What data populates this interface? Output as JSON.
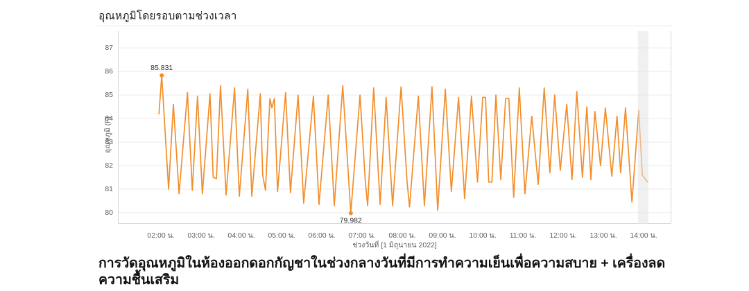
{
  "page": {
    "title": "อุณหภูมิโดยรอบตามช่วงเวลา",
    "caption": "การวัดอุณหภูมิในห้องออกดอกกัญชาในช่วงกลางวันที่มีการทำความเย็นเพื่อความสบาย + เครื่องลดความชื้นเสริม"
  },
  "colors": {
    "line": "#f28e2b",
    "grid": "#ebebeb",
    "axis_border": "#d8d8d8",
    "tick_text": "#5f5f5f",
    "annotation_text": "#2e2e2e",
    "highlight_band": "rgba(228,228,228,0.55)"
  },
  "chart_data": {
    "type": "line",
    "title": "อุณหภูมิโดยรอบตามช่วงเวลา",
    "xlabel": "ช่วงวันที่ [1 มิถุนายน 2022]",
    "ylabel": "อุณหภูมิ (F)",
    "legend": "none",
    "grid": "horizontal-only",
    "x_unit": "hour_of_day",
    "x_domain": [
      0.93,
      14.69
    ],
    "y_domain": [
      79.53,
      87.71
    ],
    "y_ticks": [
      80,
      81,
      82,
      83,
      84,
      85,
      86,
      87
    ],
    "x_ticks": [
      {
        "value": 2,
        "label": "02:00 น."
      },
      {
        "value": 3,
        "label": "03:00 น."
      },
      {
        "value": 4,
        "label": "04:00 น."
      },
      {
        "value": 5,
        "label": "05:00 น."
      },
      {
        "value": 6,
        "label": "06:00 น."
      },
      {
        "value": 7,
        "label": "07:00 น."
      },
      {
        "value": 8,
        "label": "08:00 น."
      },
      {
        "value": 9,
        "label": "09:00 น."
      },
      {
        "value": 10,
        "label": "10:00 น."
      },
      {
        "value": 11,
        "label": "11:00 น."
      },
      {
        "value": 12,
        "label": "12:00 น."
      },
      {
        "value": 13,
        "label": "13:00 น."
      },
      {
        "value": 14,
        "label": "14:00 น."
      }
    ],
    "series": [
      {
        "name": "อุณหภูมิ (F)",
        "color": "#f28e2b",
        "points": [
          [
            1.95,
            84.2
          ],
          [
            2.02,
            85.831
          ],
          [
            2.19,
            81.0
          ],
          [
            2.31,
            84.6
          ],
          [
            2.45,
            80.8
          ],
          [
            2.66,
            85.1
          ],
          [
            2.78,
            80.95
          ],
          [
            2.91,
            84.95
          ],
          [
            3.03,
            80.8
          ],
          [
            3.22,
            85.05
          ],
          [
            3.3,
            81.5
          ],
          [
            3.38,
            81.45
          ],
          [
            3.48,
            85.4
          ],
          [
            3.62,
            80.75
          ],
          [
            3.83,
            85.3
          ],
          [
            3.95,
            80.7
          ],
          [
            4.16,
            85.25
          ],
          [
            4.26,
            80.7
          ],
          [
            4.47,
            85.05
          ],
          [
            4.53,
            81.6
          ],
          [
            4.6,
            80.95
          ],
          [
            4.71,
            84.85
          ],
          [
            4.76,
            84.45
          ],
          [
            4.82,
            84.85
          ],
          [
            4.9,
            80.9
          ],
          [
            5.1,
            85.1
          ],
          [
            5.22,
            80.85
          ],
          [
            5.41,
            85.0
          ],
          [
            5.55,
            80.4
          ],
          [
            5.79,
            84.95
          ],
          [
            5.93,
            80.35
          ],
          [
            6.16,
            85.0
          ],
          [
            6.31,
            80.3
          ],
          [
            6.52,
            85.4
          ],
          [
            6.72,
            79.982
          ],
          [
            6.95,
            85.0
          ],
          [
            7.08,
            81.35
          ],
          [
            7.14,
            80.3
          ],
          [
            7.29,
            85.3
          ],
          [
            7.45,
            80.35
          ],
          [
            7.6,
            84.9
          ],
          [
            7.76,
            80.3
          ],
          [
            7.97,
            85.35
          ],
          [
            8.12,
            81.3
          ],
          [
            8.18,
            80.25
          ],
          [
            8.4,
            84.95
          ],
          [
            8.55,
            80.3
          ],
          [
            8.74,
            85.35
          ],
          [
            8.88,
            80.1
          ],
          [
            9.07,
            85.25
          ],
          [
            9.22,
            80.9
          ],
          [
            9.4,
            84.9
          ],
          [
            9.55,
            80.6
          ],
          [
            9.72,
            84.95
          ],
          [
            9.87,
            81.3
          ],
          [
            10.0,
            84.9
          ],
          [
            10.07,
            84.9
          ],
          [
            10.15,
            81.3
          ],
          [
            10.23,
            81.3
          ],
          [
            10.33,
            85.0
          ],
          [
            10.45,
            81.4
          ],
          [
            10.57,
            84.85
          ],
          [
            10.65,
            84.85
          ],
          [
            10.77,
            80.65
          ],
          [
            10.91,
            85.3
          ],
          [
            11.05,
            80.8
          ],
          [
            11.22,
            84.1
          ],
          [
            11.38,
            81.2
          ],
          [
            11.53,
            85.3
          ],
          [
            11.67,
            81.7
          ],
          [
            11.79,
            85.0
          ],
          [
            11.93,
            81.8
          ],
          [
            12.09,
            84.6
          ],
          [
            12.22,
            81.4
          ],
          [
            12.34,
            85.15
          ],
          [
            12.48,
            81.5
          ],
          [
            12.59,
            84.5
          ],
          [
            12.69,
            81.4
          ],
          [
            12.79,
            84.3
          ],
          [
            12.93,
            82.0
          ],
          [
            13.05,
            84.45
          ],
          [
            13.21,
            81.55
          ],
          [
            13.34,
            84.1
          ],
          [
            13.43,
            81.7
          ],
          [
            13.55,
            84.45
          ],
          [
            13.71,
            80.45
          ],
          [
            13.88,
            84.35
          ],
          [
            13.97,
            81.6
          ],
          [
            14.1,
            81.3
          ]
        ]
      }
    ],
    "annotations": [
      {
        "t": 2.02,
        "v": 85.831,
        "label": "85.831",
        "position": "above"
      },
      {
        "t": 6.72,
        "v": 79.982,
        "label": "79.982",
        "position": "below"
      }
    ],
    "highlight_band": {
      "t_start": 13.86,
      "t_end": 14.12
    }
  }
}
